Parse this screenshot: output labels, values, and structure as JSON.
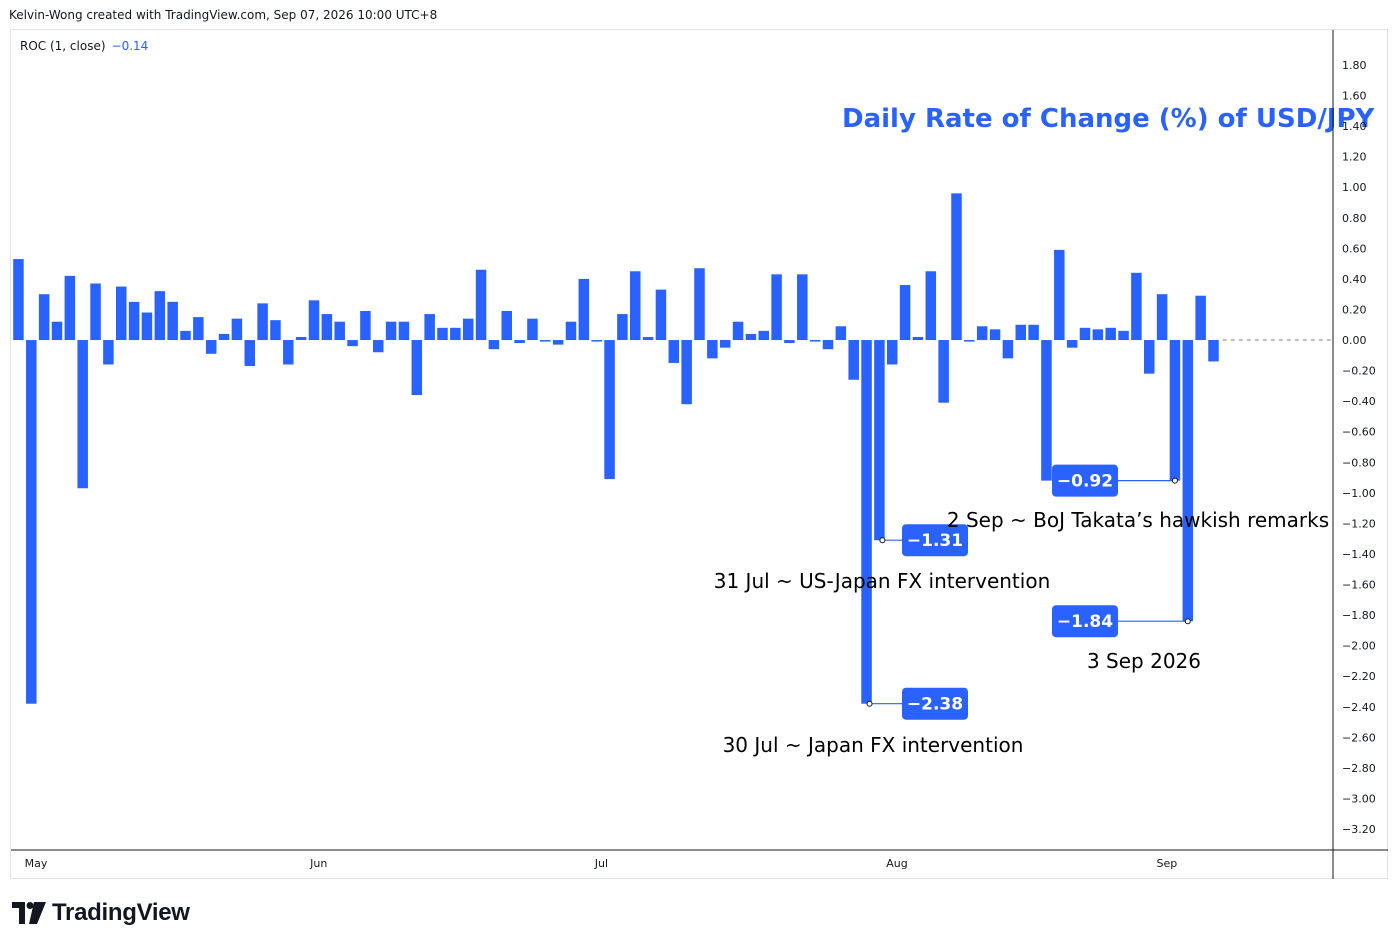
{
  "attribution": "Kelvin-Wong created with TradingView.com, Sep 07, 2026 10:00 UTC+8",
  "legend": {
    "label": "ROC (1, close)",
    "value": "−0.14"
  },
  "branding": "TradingView",
  "colors": {
    "bar": "#2962ff",
    "text": "#131722",
    "grid": "#e0e3eb",
    "tag": "#2962ff"
  },
  "chart_data": {
    "type": "bar",
    "title": "Daily Rate of Change (%) of USD/JPY",
    "series": [
      {
        "name": "ROC (1, close)",
        "color": "#2962ff"
      }
    ],
    "values": [
      0.53,
      -2.38,
      0.3,
      0.12,
      0.42,
      -0.97,
      0.37,
      -0.16,
      0.35,
      0.25,
      0.18,
      0.32,
      0.25,
      0.06,
      0.15,
      -0.09,
      0.04,
      0.14,
      -0.17,
      0.24,
      0.13,
      -0.16,
      0.02,
      0.26,
      0.17,
      0.12,
      -0.04,
      0.19,
      -0.08,
      0.12,
      0.12,
      -0.36,
      0.17,
      0.08,
      0.08,
      0.14,
      0.46,
      -0.06,
      0.19,
      -0.02,
      0.14,
      -0.01,
      -0.03,
      0.12,
      0.4,
      -0.01,
      -0.91,
      0.17,
      0.45,
      0.02,
      0.33,
      -0.15,
      -0.42,
      0.47,
      -0.12,
      -0.05,
      0.12,
      0.04,
      0.06,
      0.43,
      -0.02,
      0.43,
      -0.01,
      -0.06,
      0.09,
      -0.26,
      -2.38,
      -1.31,
      -0.16,
      0.36,
      0.02,
      0.45,
      -0.41,
      0.96,
      -0.01,
      0.09,
      0.07,
      -0.12,
      0.1,
      0.1,
      -0.92,
      0.59,
      -0.05,
      0.08,
      0.07,
      0.08,
      0.06,
      0.44,
      -0.22,
      0.3,
      -0.92,
      -1.84,
      0.29,
      -0.14
    ],
    "x_ticks": [
      {
        "label": "May",
        "index": 1
      },
      {
        "label": "Jun",
        "index": 23
      },
      {
        "label": "Jul",
        "index": 45
      },
      {
        "label": "Aug",
        "index": 68
      },
      {
        "label": "Sep",
        "index": 89
      }
    ],
    "y_ticks": [
      "1.80",
      "1.60",
      "1.40",
      "1.20",
      "1.00",
      "0.80",
      "0.60",
      "0.40",
      "0.20",
      "0.00",
      "−0.20",
      "−0.40",
      "−0.60",
      "−0.80",
      "−1.00",
      "−1.20",
      "−1.40",
      "−1.60",
      "−1.80",
      "−2.00",
      "−2.20",
      "−2.40",
      "−2.60",
      "−2.80",
      "−3.00",
      "−3.20"
    ],
    "ylim": [
      -3.2,
      1.8
    ],
    "zero_line": "dashed",
    "annotations": [
      {
        "index": 66,
        "value": -2.38,
        "tag": "−2.38",
        "text": "30 Jul ~ Japan FX intervention"
      },
      {
        "index": 67,
        "value": -1.31,
        "tag": "−1.31",
        "text": "31 Jul ~ US-Japan FX intervention"
      },
      {
        "index": 90,
        "value": -0.92,
        "tag": "−0.92",
        "text": "2 Sep ~ BoJ Takata’s hawkish remarks"
      },
      {
        "index": 91,
        "value": -1.84,
        "tag": "−1.84",
        "text": "3 Sep 2026"
      }
    ]
  }
}
